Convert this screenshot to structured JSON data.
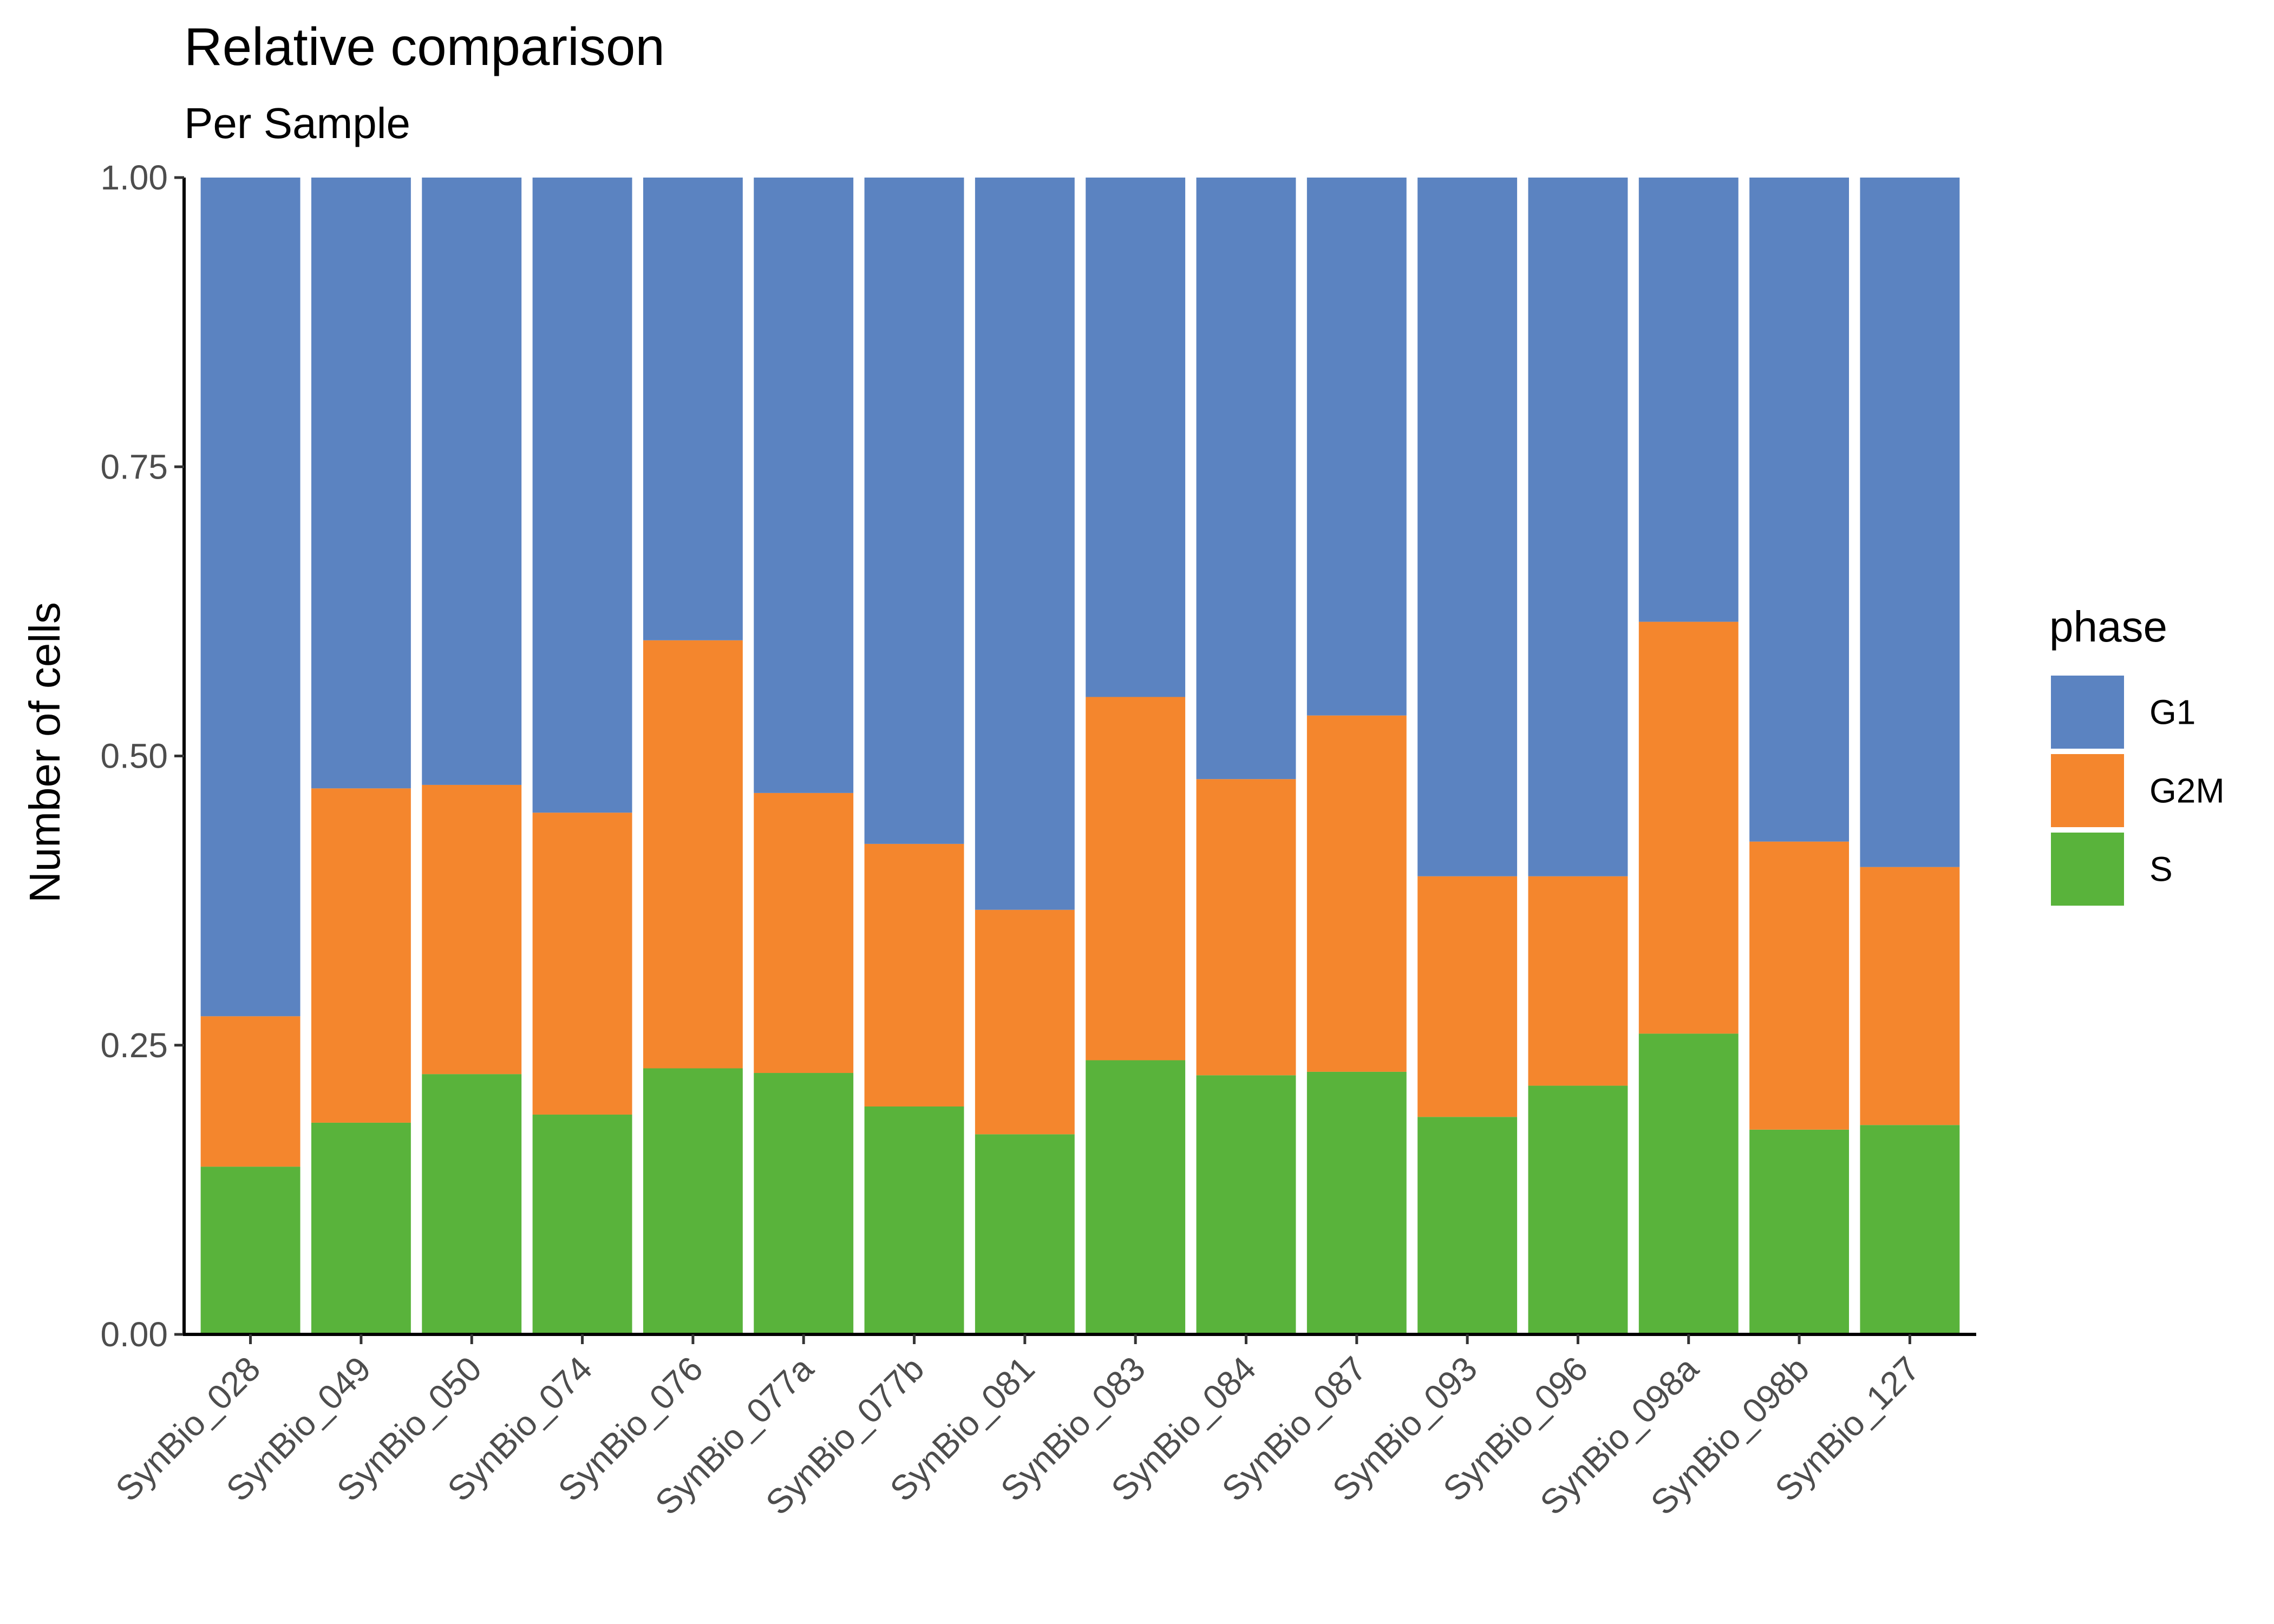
{
  "chart_data": {
    "type": "bar",
    "stacked": true,
    "title": "Relative comparison",
    "subtitle": "Per Sample",
    "xlabel": "",
    "ylabel": "Number of cells",
    "ylim": [
      0,
      1
    ],
    "yticks": [
      0,
      0.25,
      0.5,
      0.75,
      1.0
    ],
    "ytick_labels": [
      "0.00",
      "0.25",
      "0.50",
      "0.75",
      "1.00"
    ],
    "grid": false,
    "legend": {
      "title": "phase",
      "position": "right"
    },
    "categories": [
      "SynBio_028",
      "SynBio_049",
      "SynBio_050",
      "SynBio_074",
      "SynBio_076",
      "SynBio_077a",
      "SynBio_077b",
      "SynBio_081",
      "SynBio_083",
      "SynBio_084",
      "SynBio_087",
      "SynBio_093",
      "SynBio_096",
      "SynBio_098a",
      "SynBio_098b",
      "SynBio_127"
    ],
    "series": [
      {
        "name": "S",
        "color": "#59b33b",
        "values": [
          0.145,
          0.183,
          0.225,
          0.19,
          0.23,
          0.226,
          0.197,
          0.173,
          0.237,
          0.224,
          0.227,
          0.188,
          0.215,
          0.26,
          0.177,
          0.181
        ]
      },
      {
        "name": "G2M",
        "color": "#f4862d",
        "values": [
          0.13,
          0.289,
          0.25,
          0.261,
          0.37,
          0.242,
          0.227,
          0.194,
          0.314,
          0.256,
          0.308,
          0.208,
          0.181,
          0.356,
          0.249,
          0.223
        ]
      },
      {
        "name": "G1",
        "color": "#5b83c1",
        "values": [
          0.725,
          0.528,
          0.525,
          0.549,
          0.4,
          0.532,
          0.576,
          0.633,
          0.449,
          0.52,
          0.465,
          0.604,
          0.604,
          0.384,
          0.574,
          0.596
        ]
      }
    ],
    "legend_order": [
      "G1",
      "G2M",
      "S"
    ]
  }
}
